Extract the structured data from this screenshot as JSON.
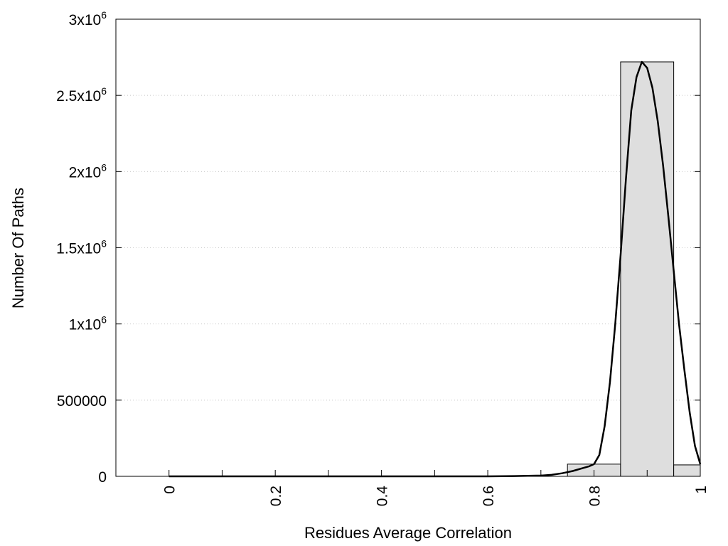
{
  "chart_data": {
    "type": "bar",
    "title": "",
    "xlabel": "Residues Average Correlation",
    "ylabel": "Number Of Paths",
    "xlim": [
      -0.1,
      1.0
    ],
    "ylim": [
      0,
      3000000
    ],
    "grid": "horizontal dotted",
    "x_ticks": [
      {
        "value": 0,
        "label": "0"
      },
      {
        "value": 0.2,
        "label": "0.2"
      },
      {
        "value": 0.4,
        "label": "0.4"
      },
      {
        "value": 0.6,
        "label": "0.6"
      },
      {
        "value": 0.8,
        "label": "0.8"
      },
      {
        "value": 1.0,
        "label": "1"
      }
    ],
    "x_minor_ticks": [
      0.1,
      0.3,
      0.5,
      0.7,
      0.9
    ],
    "y_ticks": [
      {
        "value": 0,
        "base": "0",
        "exp": ""
      },
      {
        "value": 500000,
        "base": "500000",
        "exp": ""
      },
      {
        "value": 1000000,
        "base": "1x10",
        "exp": "6"
      },
      {
        "value": 1500000,
        "base": "1.5x10",
        "exp": "6"
      },
      {
        "value": 2000000,
        "base": "2x10",
        "exp": "6"
      },
      {
        "value": 2500000,
        "base": "2.5x10",
        "exp": "6"
      },
      {
        "value": 3000000,
        "base": "3x10",
        "exp": "6"
      }
    ],
    "bars": [
      {
        "x0": 0.75,
        "x1": 0.85,
        "value": 80000
      },
      {
        "x0": 0.85,
        "x1": 0.95,
        "value": 2720000
      },
      {
        "x0": 0.95,
        "x1": 1.0,
        "value": 75000
      }
    ],
    "series": [
      {
        "type": "line",
        "x": [
          0,
          0.1,
          0.2,
          0.3,
          0.4,
          0.5,
          0.6,
          0.65,
          0.7,
          0.72,
          0.74,
          0.76,
          0.78,
          0.79,
          0.8,
          0.81,
          0.82,
          0.83,
          0.84,
          0.85,
          0.86,
          0.87,
          0.88,
          0.89,
          0.9,
          0.91,
          0.92,
          0.93,
          0.94,
          0.95,
          0.96,
          0.97,
          0.98,
          0.99,
          1.0
        ],
        "y": [
          0,
          0,
          0,
          0,
          0,
          0,
          0,
          2000,
          5000,
          10000,
          20000,
          35000,
          55000,
          65000,
          80000,
          140000,
          330000,
          620000,
          1000000,
          1450000,
          1950000,
          2400000,
          2620000,
          2720000,
          2680000,
          2550000,
          2330000,
          2040000,
          1700000,
          1350000,
          1000000,
          700000,
          420000,
          200000,
          80000
        ]
      }
    ],
    "colors": {
      "bar_fill": "#dedede",
      "bar_stroke": "#000000",
      "line": "#000000",
      "grid": "#c8c8c8"
    }
  }
}
